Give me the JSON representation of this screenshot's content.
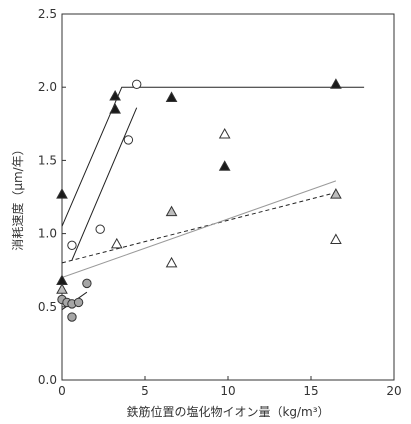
{
  "chart_data": {
    "type": "scatter",
    "xlabel": "鉄筋位置の塩化物イオン量（kg/m³）",
    "ylabel": "消耗速度（μm/年）",
    "xlim": [
      0,
      20
    ],
    "ylim": [
      0.0,
      2.5
    ],
    "x_ticks": [
      {
        "value": 0,
        "label": "0"
      },
      {
        "value": 5,
        "label": "5"
      },
      {
        "value": 10,
        "label": "10"
      },
      {
        "value": 15,
        "label": "15"
      },
      {
        "value": 20,
        "label": "20"
      }
    ],
    "y_ticks": [
      {
        "value": 0.0,
        "label": "0.0"
      },
      {
        "value": 0.5,
        "label": "0.5"
      },
      {
        "value": 1.0,
        "label": "1.0"
      },
      {
        "value": 1.5,
        "label": "1.5"
      },
      {
        "value": 2.0,
        "label": "2.0"
      },
      {
        "value": 2.5,
        "label": "2.5"
      }
    ],
    "grid": false,
    "legend": "none",
    "series": [
      {
        "marker": "triangle",
        "fill": "#1a1a1a",
        "points": [
          [
            0.0,
            1.27
          ],
          [
            0.0,
            0.68
          ],
          [
            3.2,
            1.94
          ],
          [
            3.2,
            1.85
          ],
          [
            6.6,
            1.93
          ],
          [
            9.8,
            1.46
          ],
          [
            16.5,
            2.02
          ]
        ]
      },
      {
        "marker": "circle",
        "fill": "#ffffff",
        "points": [
          [
            0.6,
            0.92
          ],
          [
            2.3,
            1.03
          ],
          [
            4.5,
            2.02
          ],
          [
            4.0,
            1.64
          ]
        ]
      },
      {
        "marker": "triangle",
        "fill": "#bdbdbd",
        "points": [
          [
            0.0,
            0.62
          ],
          [
            6.6,
            1.15
          ],
          [
            16.5,
            1.27
          ]
        ]
      },
      {
        "marker": "triangle",
        "fill": "#ffffff",
        "points": [
          [
            3.3,
            0.93
          ],
          [
            6.6,
            0.8
          ],
          [
            9.8,
            1.68
          ],
          [
            16.5,
            0.96
          ]
        ]
      },
      {
        "marker": "circle",
        "fill": "#a6a6a6",
        "points": [
          [
            0.0,
            0.55
          ],
          [
            0.3,
            0.53
          ],
          [
            0.6,
            0.52
          ],
          [
            0.6,
            0.43
          ],
          [
            1.0,
            0.53
          ],
          [
            1.5,
            0.66
          ]
        ]
      }
    ],
    "lines": [
      {
        "points": [
          [
            0.0,
            1.05
          ],
          [
            3.6,
            2.0
          ],
          [
            18.2,
            2.0
          ]
        ],
        "color": "#222222",
        "dash": false
      },
      {
        "points": [
          [
            0.6,
            0.82
          ],
          [
            4.5,
            1.86
          ]
        ],
        "color": "#222222",
        "dash": false
      },
      {
        "points": [
          [
            0.0,
            0.8
          ],
          [
            16.5,
            1.28
          ]
        ],
        "color": "#222222",
        "dash": true
      },
      {
        "points": [
          [
            0.0,
            0.7
          ],
          [
            16.5,
            1.36
          ]
        ],
        "color": "#9a9a9a",
        "dash": false
      },
      {
        "points": [
          [
            0.0,
            0.48
          ],
          [
            1.5,
            0.6
          ]
        ],
        "color": "#222222",
        "dash": false
      }
    ]
  }
}
